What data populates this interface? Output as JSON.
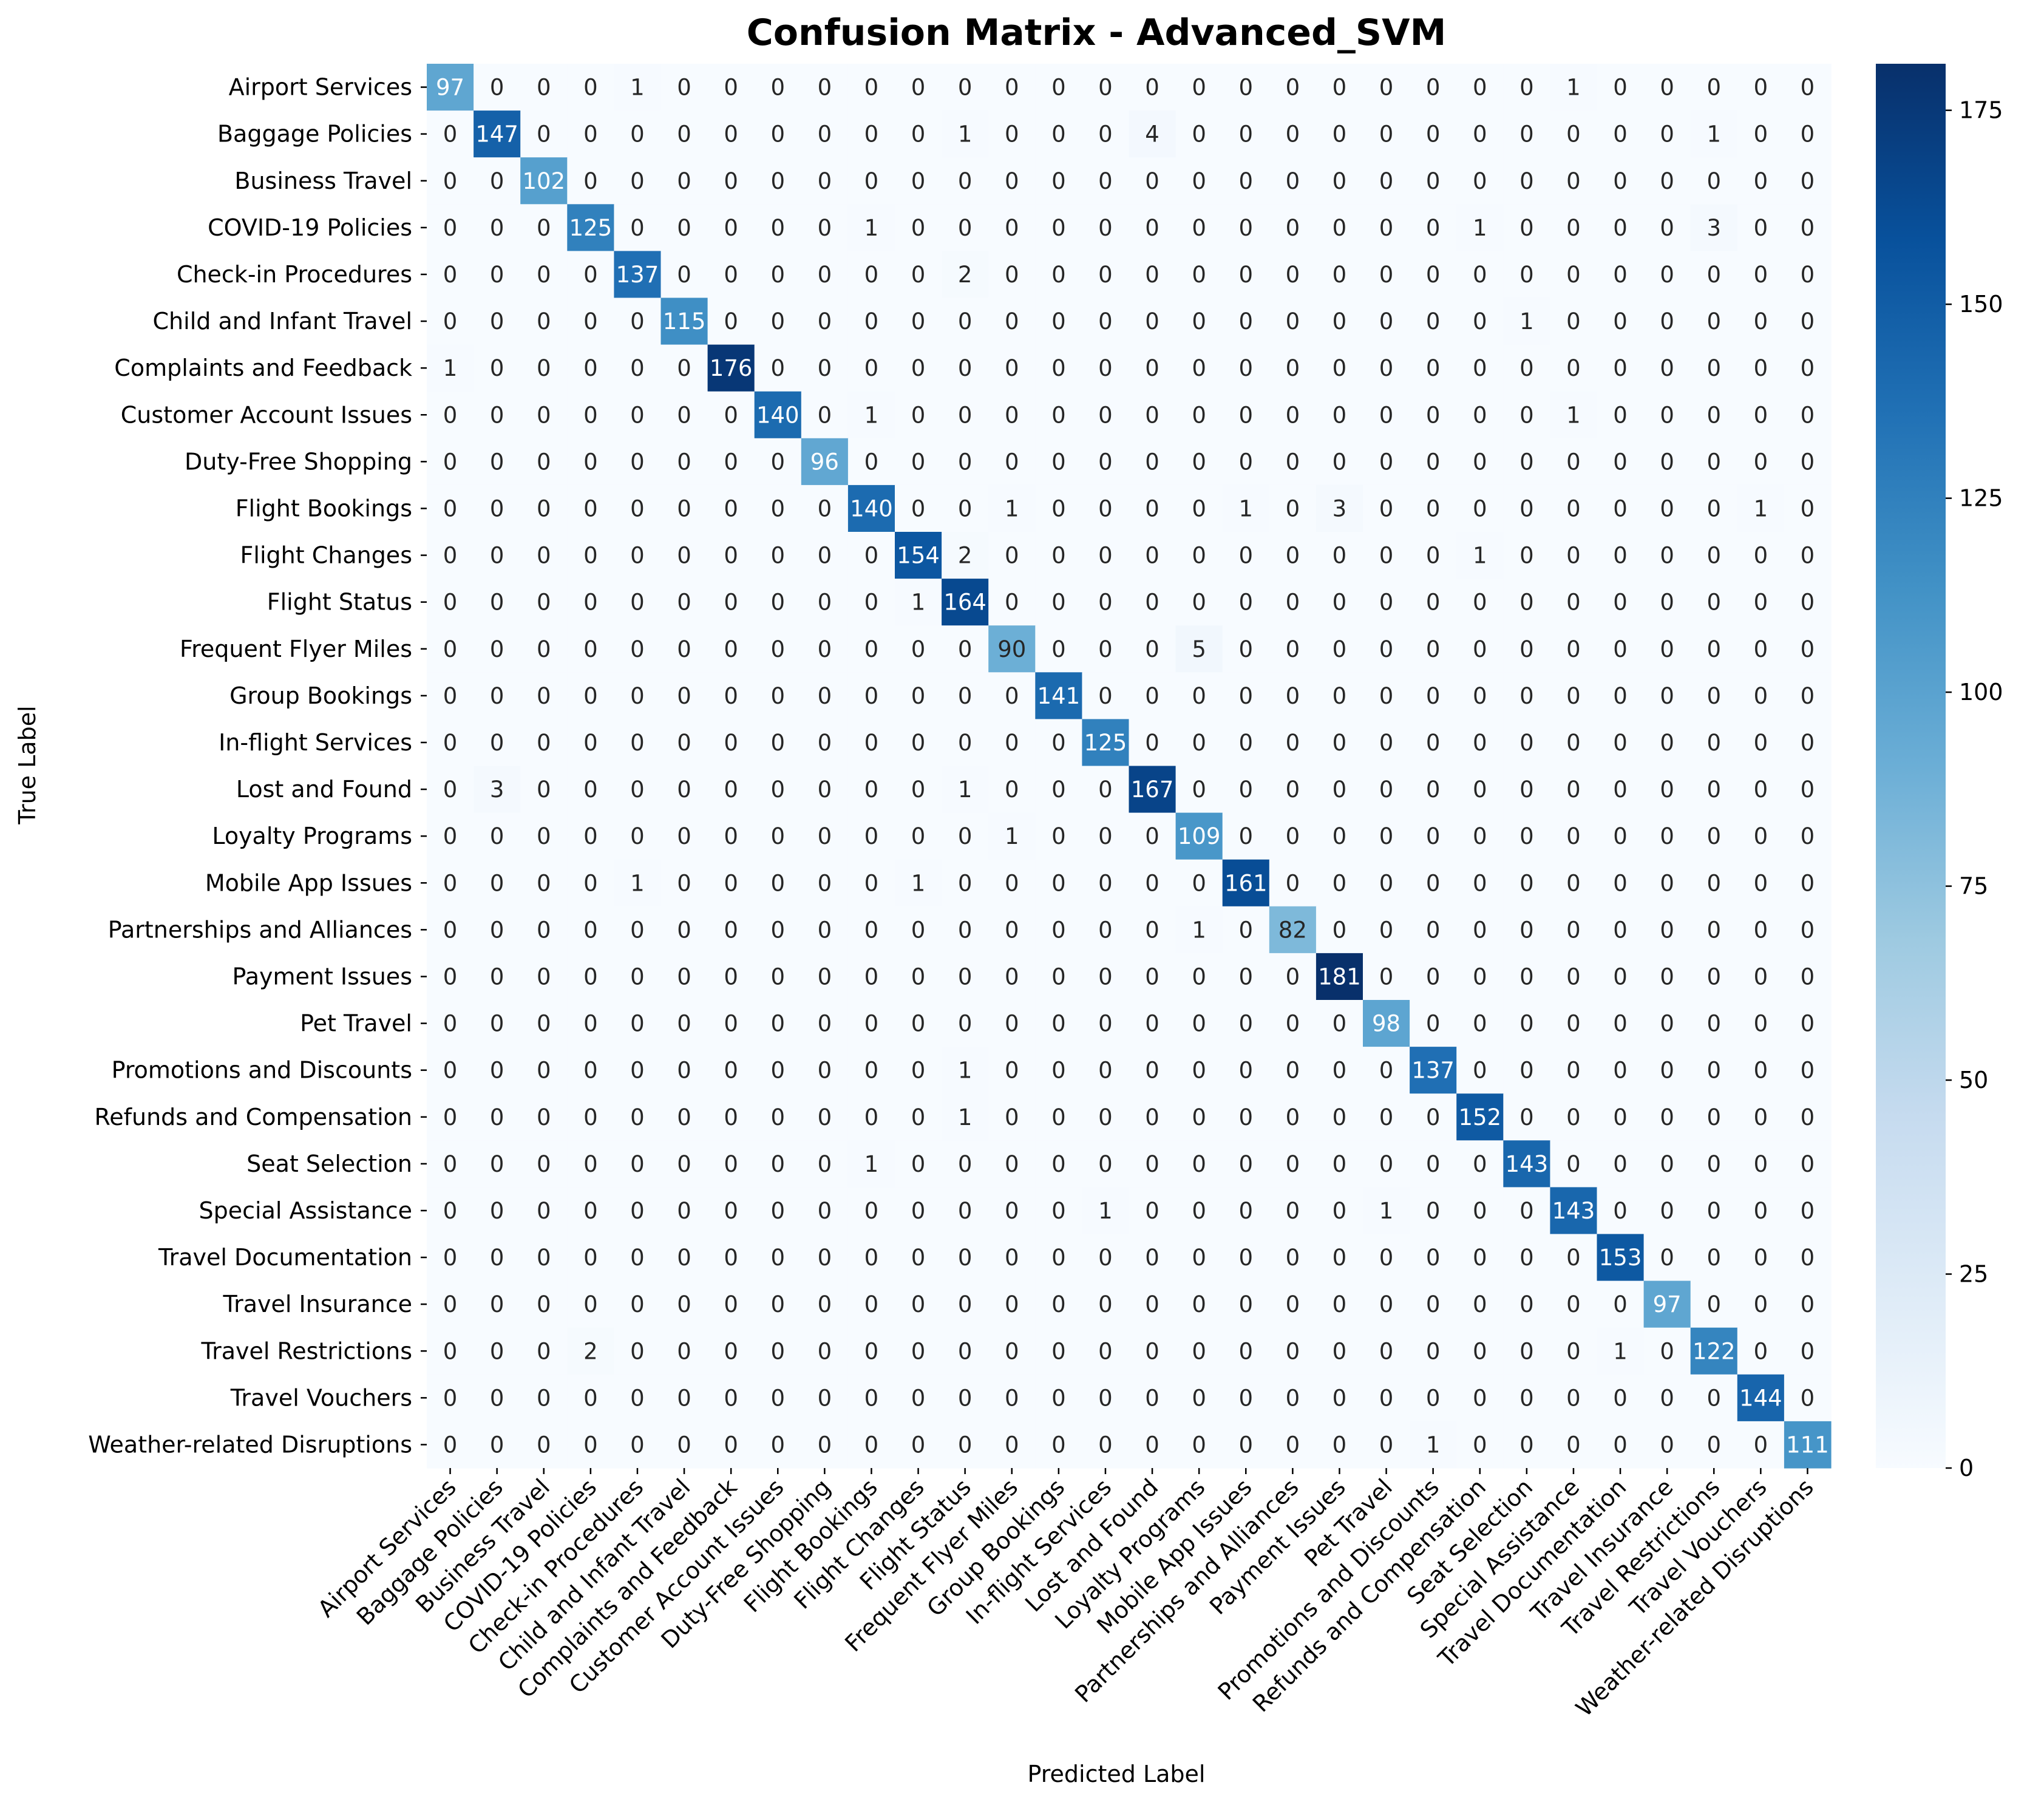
{
  "chart_data": {
    "type": "heatmap",
    "title": "Confusion Matrix - Advanced_SVM",
    "xlabel": "Predicted Label",
    "ylabel": "True Label",
    "colormap": "Blues",
    "colorbar": {
      "min": 0,
      "max": 181,
      "ticks": [
        0,
        25,
        50,
        75,
        100,
        125,
        150,
        175
      ]
    },
    "labels": [
      "Airport Services",
      "Baggage Policies",
      "Business Travel",
      "COVID-19 Policies",
      "Check-in Procedures",
      "Child and Infant Travel",
      "Complaints and Feedback",
      "Customer Account Issues",
      "Duty-Free Shopping",
      "Flight Bookings",
      "Flight Changes",
      "Flight Status",
      "Frequent Flyer Miles",
      "Group Bookings",
      "In-flight Services",
      "Lost and Found",
      "Loyalty Programs",
      "Mobile App Issues",
      "Partnerships and Alliances",
      "Payment Issues",
      "Pet Travel",
      "Promotions and Discounts",
      "Refunds and Compensation",
      "Seat Selection",
      "Special Assistance",
      "Travel Documentation",
      "Travel Insurance",
      "Travel Restrictions",
      "Travel Vouchers",
      "Weather-related Disruptions"
    ],
    "matrix": [
      [
        97,
        0,
        0,
        0,
        1,
        0,
        0,
        0,
        0,
        0,
        0,
        0,
        0,
        0,
        0,
        0,
        0,
        0,
        0,
        0,
        0,
        0,
        0,
        0,
        1,
        0,
        0,
        0,
        0,
        0
      ],
      [
        0,
        147,
        0,
        0,
        0,
        0,
        0,
        0,
        0,
        0,
        0,
        1,
        0,
        0,
        0,
        4,
        0,
        0,
        0,
        0,
        0,
        0,
        0,
        0,
        0,
        0,
        0,
        1,
        0,
        0
      ],
      [
        0,
        0,
        102,
        0,
        0,
        0,
        0,
        0,
        0,
        0,
        0,
        0,
        0,
        0,
        0,
        0,
        0,
        0,
        0,
        0,
        0,
        0,
        0,
        0,
        0,
        0,
        0,
        0,
        0,
        0
      ],
      [
        0,
        0,
        0,
        125,
        0,
        0,
        0,
        0,
        0,
        1,
        0,
        0,
        0,
        0,
        0,
        0,
        0,
        0,
        0,
        0,
        0,
        0,
        1,
        0,
        0,
        0,
        0,
        3,
        0,
        0
      ],
      [
        0,
        0,
        0,
        0,
        137,
        0,
        0,
        0,
        0,
        0,
        0,
        2,
        0,
        0,
        0,
        0,
        0,
        0,
        0,
        0,
        0,
        0,
        0,
        0,
        0,
        0,
        0,
        0,
        0,
        0
      ],
      [
        0,
        0,
        0,
        0,
        0,
        115,
        0,
        0,
        0,
        0,
        0,
        0,
        0,
        0,
        0,
        0,
        0,
        0,
        0,
        0,
        0,
        0,
        0,
        1,
        0,
        0,
        0,
        0,
        0,
        0
      ],
      [
        1,
        0,
        0,
        0,
        0,
        0,
        176,
        0,
        0,
        0,
        0,
        0,
        0,
        0,
        0,
        0,
        0,
        0,
        0,
        0,
        0,
        0,
        0,
        0,
        0,
        0,
        0,
        0,
        0,
        0
      ],
      [
        0,
        0,
        0,
        0,
        0,
        0,
        0,
        140,
        0,
        1,
        0,
        0,
        0,
        0,
        0,
        0,
        0,
        0,
        0,
        0,
        0,
        0,
        0,
        0,
        1,
        0,
        0,
        0,
        0,
        0
      ],
      [
        0,
        0,
        0,
        0,
        0,
        0,
        0,
        0,
        96,
        0,
        0,
        0,
        0,
        0,
        0,
        0,
        0,
        0,
        0,
        0,
        0,
        0,
        0,
        0,
        0,
        0,
        0,
        0,
        0,
        0
      ],
      [
        0,
        0,
        0,
        0,
        0,
        0,
        0,
        0,
        0,
        140,
        0,
        0,
        1,
        0,
        0,
        0,
        0,
        1,
        0,
        3,
        0,
        0,
        0,
        0,
        0,
        0,
        0,
        0,
        1,
        0
      ],
      [
        0,
        0,
        0,
        0,
        0,
        0,
        0,
        0,
        0,
        0,
        154,
        2,
        0,
        0,
        0,
        0,
        0,
        0,
        0,
        0,
        0,
        0,
        1,
        0,
        0,
        0,
        0,
        0,
        0,
        0
      ],
      [
        0,
        0,
        0,
        0,
        0,
        0,
        0,
        0,
        0,
        0,
        1,
        164,
        0,
        0,
        0,
        0,
        0,
        0,
        0,
        0,
        0,
        0,
        0,
        0,
        0,
        0,
        0,
        0,
        0,
        0
      ],
      [
        0,
        0,
        0,
        0,
        0,
        0,
        0,
        0,
        0,
        0,
        0,
        0,
        90,
        0,
        0,
        0,
        5,
        0,
        0,
        0,
        0,
        0,
        0,
        0,
        0,
        0,
        0,
        0,
        0,
        0
      ],
      [
        0,
        0,
        0,
        0,
        0,
        0,
        0,
        0,
        0,
        0,
        0,
        0,
        0,
        141,
        0,
        0,
        0,
        0,
        0,
        0,
        0,
        0,
        0,
        0,
        0,
        0,
        0,
        0,
        0,
        0
      ],
      [
        0,
        0,
        0,
        0,
        0,
        0,
        0,
        0,
        0,
        0,
        0,
        0,
        0,
        0,
        125,
        0,
        0,
        0,
        0,
        0,
        0,
        0,
        0,
        0,
        0,
        0,
        0,
        0,
        0,
        0
      ],
      [
        0,
        3,
        0,
        0,
        0,
        0,
        0,
        0,
        0,
        0,
        0,
        1,
        0,
        0,
        0,
        167,
        0,
        0,
        0,
        0,
        0,
        0,
        0,
        0,
        0,
        0,
        0,
        0,
        0,
        0
      ],
      [
        0,
        0,
        0,
        0,
        0,
        0,
        0,
        0,
        0,
        0,
        0,
        0,
        1,
        0,
        0,
        0,
        109,
        0,
        0,
        0,
        0,
        0,
        0,
        0,
        0,
        0,
        0,
        0,
        0,
        0
      ],
      [
        0,
        0,
        0,
        0,
        1,
        0,
        0,
        0,
        0,
        0,
        1,
        0,
        0,
        0,
        0,
        0,
        0,
        161,
        0,
        0,
        0,
        0,
        0,
        0,
        0,
        0,
        0,
        0,
        0,
        0
      ],
      [
        0,
        0,
        0,
        0,
        0,
        0,
        0,
        0,
        0,
        0,
        0,
        0,
        0,
        0,
        0,
        0,
        1,
        0,
        82,
        0,
        0,
        0,
        0,
        0,
        0,
        0,
        0,
        0,
        0,
        0
      ],
      [
        0,
        0,
        0,
        0,
        0,
        0,
        0,
        0,
        0,
        0,
        0,
        0,
        0,
        0,
        0,
        0,
        0,
        0,
        0,
        181,
        0,
        0,
        0,
        0,
        0,
        0,
        0,
        0,
        0,
        0
      ],
      [
        0,
        0,
        0,
        0,
        0,
        0,
        0,
        0,
        0,
        0,
        0,
        0,
        0,
        0,
        0,
        0,
        0,
        0,
        0,
        0,
        98,
        0,
        0,
        0,
        0,
        0,
        0,
        0,
        0,
        0
      ],
      [
        0,
        0,
        0,
        0,
        0,
        0,
        0,
        0,
        0,
        0,
        0,
        1,
        0,
        0,
        0,
        0,
        0,
        0,
        0,
        0,
        0,
        137,
        0,
        0,
        0,
        0,
        0,
        0,
        0,
        0
      ],
      [
        0,
        0,
        0,
        0,
        0,
        0,
        0,
        0,
        0,
        0,
        0,
        1,
        0,
        0,
        0,
        0,
        0,
        0,
        0,
        0,
        0,
        0,
        152,
        0,
        0,
        0,
        0,
        0,
        0,
        0
      ],
      [
        0,
        0,
        0,
        0,
        0,
        0,
        0,
        0,
        0,
        1,
        0,
        0,
        0,
        0,
        0,
        0,
        0,
        0,
        0,
        0,
        0,
        0,
        0,
        143,
        0,
        0,
        0,
        0,
        0,
        0
      ],
      [
        0,
        0,
        0,
        0,
        0,
        0,
        0,
        0,
        0,
        0,
        0,
        0,
        0,
        0,
        1,
        0,
        0,
        0,
        0,
        0,
        1,
        0,
        0,
        0,
        143,
        0,
        0,
        0,
        0,
        0
      ],
      [
        0,
        0,
        0,
        0,
        0,
        0,
        0,
        0,
        0,
        0,
        0,
        0,
        0,
        0,
        0,
        0,
        0,
        0,
        0,
        0,
        0,
        0,
        0,
        0,
        0,
        153,
        0,
        0,
        0,
        0
      ],
      [
        0,
        0,
        0,
        0,
        0,
        0,
        0,
        0,
        0,
        0,
        0,
        0,
        0,
        0,
        0,
        0,
        0,
        0,
        0,
        0,
        0,
        0,
        0,
        0,
        0,
        0,
        97,
        0,
        0,
        0
      ],
      [
        0,
        0,
        0,
        2,
        0,
        0,
        0,
        0,
        0,
        0,
        0,
        0,
        0,
        0,
        0,
        0,
        0,
        0,
        0,
        0,
        0,
        0,
        0,
        0,
        0,
        1,
        0,
        122,
        0,
        0
      ],
      [
        0,
        0,
        0,
        0,
        0,
        0,
        0,
        0,
        0,
        0,
        0,
        0,
        0,
        0,
        0,
        0,
        0,
        0,
        0,
        0,
        0,
        0,
        0,
        0,
        0,
        0,
        0,
        0,
        144,
        0
      ],
      [
        0,
        0,
        0,
        0,
        0,
        0,
        0,
        0,
        0,
        0,
        0,
        0,
        0,
        0,
        0,
        0,
        0,
        0,
        0,
        0,
        0,
        1,
        0,
        0,
        0,
        0,
        0,
        0,
        0,
        111
      ]
    ]
  }
}
